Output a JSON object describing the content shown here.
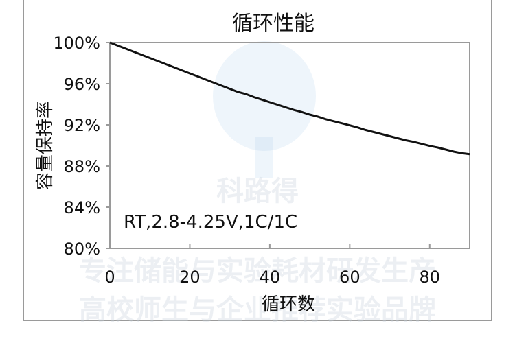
{
  "colors": {
    "line": "#111111",
    "axis": "#9a9a9a",
    "background": "#ffffff",
    "frame": "#9a9a9a"
  },
  "chart_data": {
    "type": "line",
    "title": "循环性能",
    "xlabel": "循环数",
    "ylabel": "容量保持率",
    "annotation": "RT,2.8-4.25V,1C/1C",
    "xlim": [
      0,
      90
    ],
    "ylim": [
      80,
      100
    ],
    "x_ticks": [
      0,
      20,
      40,
      60,
      80
    ],
    "x_tick_labels": [
      "0",
      "20",
      "40",
      "60",
      "80"
    ],
    "y_ticks": [
      80,
      84,
      88,
      92,
      96,
      100
    ],
    "y_tick_labels": [
      "80%",
      "84%",
      "88%",
      "92%",
      "96%",
      "100%"
    ],
    "grid": false,
    "series": [
      {
        "x": [
          0,
          2,
          4,
          6,
          8,
          10,
          12,
          14,
          16,
          18,
          20,
          22,
          24,
          26,
          28,
          30,
          32,
          34,
          36,
          38,
          40,
          42,
          44,
          46,
          48,
          50,
          52,
          54,
          56,
          58,
          60,
          62,
          64,
          66,
          68,
          70,
          72,
          74,
          76,
          78,
          80,
          82,
          84,
          86,
          88,
          90
        ],
        "values": [
          100.0,
          99.7,
          99.4,
          99.1,
          98.8,
          98.5,
          98.2,
          97.9,
          97.6,
          97.3,
          97.0,
          96.7,
          96.4,
          96.1,
          95.8,
          95.5,
          95.2,
          95.0,
          94.7,
          94.45,
          94.2,
          93.95,
          93.7,
          93.45,
          93.25,
          93.0,
          92.8,
          92.55,
          92.35,
          92.15,
          91.95,
          91.75,
          91.5,
          91.3,
          91.1,
          90.9,
          90.7,
          90.5,
          90.35,
          90.15,
          89.95,
          89.8,
          89.6,
          89.4,
          89.25,
          89.15
        ]
      }
    ]
  },
  "watermark": {
    "brand": "科路得",
    "line1": "专注储能与实验耗材研发生产",
    "line2": "高校师生与企业推荐实验品牌"
  }
}
